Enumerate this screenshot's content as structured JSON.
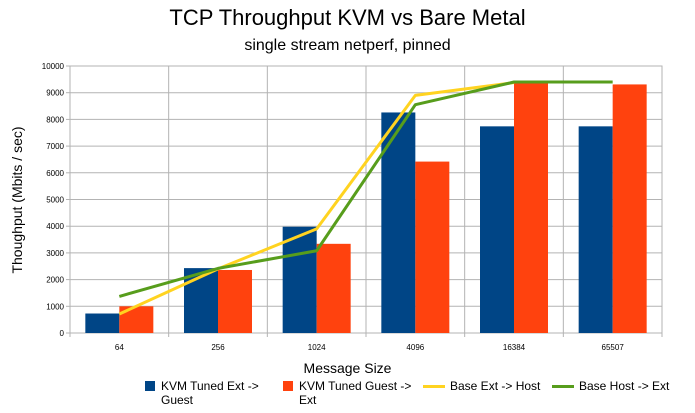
{
  "chart_data": {
    "type": "bar",
    "title": "TCP Throughput KVM vs Bare Metal",
    "subtitle": "single stream netperf, pinned",
    "xlabel": "Message Size",
    "ylabel": "Thoughput (Mbits / sec)",
    "ylim": [
      0,
      10000
    ],
    "ytick_step": 1000,
    "grid": true,
    "legend_position": "bottom",
    "categories": [
      "64",
      "256",
      "1024",
      "4096",
      "16384",
      "65507"
    ],
    "bar_series": [
      {
        "name": "KVM Tuned Ext -> Guest",
        "color": "#004586",
        "values": [
          730,
          2430,
          3980,
          8260,
          7740,
          7740
        ]
      },
      {
        "name": "KVM Tuned Guest -> Ext",
        "color": "#ff420e",
        "values": [
          1000,
          2360,
          3340,
          6420,
          9400,
          9310
        ]
      }
    ],
    "line_series": [
      {
        "name": "Base Ext -> Host",
        "color": "#ffd320",
        "values": [
          710,
          2400,
          3900,
          8900,
          9380,
          null
        ]
      },
      {
        "name": "Base Host -> Ext",
        "color": "#579d1c",
        "values": [
          1370,
          2420,
          3080,
          8550,
          9400,
          9400
        ]
      }
    ]
  },
  "legend": {
    "item1_line1": "KVM Tuned Ext ->",
    "item1_line2": "Guest",
    "item2_line1": "KVM Tuned Guest ->",
    "item2_line2": "Ext",
    "item3": "Base Ext -> Host",
    "item4": "Base Host -> Ext"
  }
}
